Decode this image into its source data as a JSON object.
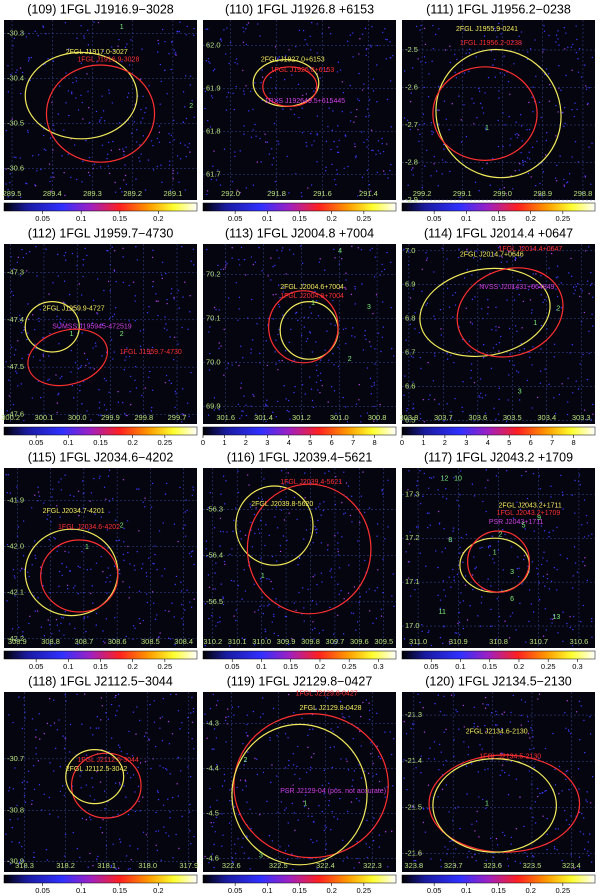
{
  "panels": [
    {
      "title": "(109) 1FGL J1916.9−3028",
      "xlim": [
        289.52,
        289.04
      ],
      "ylim": [
        -30.27,
        -30.67
      ],
      "xticks": [
        289.5,
        289.4,
        289.3,
        289.2,
        289.1
      ],
      "yticks": [
        -30.3,
        -30.4,
        -30.5,
        -30.6
      ],
      "cbar_lim": [
        0,
        0.25
      ],
      "cbar_ticks": [
        0.05,
        0.1,
        0.15,
        0.2
      ],
      "labels": [
        {
          "text": "2FGL J1917.0-3027",
          "color": "#f2ea5a"
        },
        {
          "text": "1FGL J1916.9-3028",
          "color": "#ff3030"
        },
        {
          "text": "1",
          "color": "#7cf07c"
        },
        {
          "text": "2",
          "color": "#7cf07c"
        }
      ]
    },
    {
      "title": "(110) 1FGL J1926.8 +6153",
      "xlim": [
        292.12,
        291.28
      ],
      "ylim": [
        62.06,
        61.64
      ],
      "xticks": [
        {
          "value": 292,
          "label": "292.0"
        },
        291.8,
        291.6,
        291.4
      ],
      "yticks": [
        {
          "value": 62,
          "label": "62.0"
        },
        61.9,
        61.8,
        61.7
      ],
      "cbar_lim": [
        0,
        0.3
      ],
      "cbar_ticks": [
        0.05,
        0.1,
        0.15,
        0.2,
        0.25
      ],
      "labels": [
        {
          "text": "2FGL J1927.0+6153",
          "color": "#f2ea5a"
        },
        {
          "text": "1FGL J1926.8+6153",
          "color": "#ff3030"
        },
        {
          "text": "1RXS J192649.5+615445",
          "color": "#d040e0"
        }
      ]
    },
    {
      "title": "(111) 1FGL J1956.2−0238",
      "xlim": [
        299.25,
        298.77
      ],
      "ylim": [
        -2.42,
        -2.9
      ],
      "xticks": [
        299.2,
        299.1,
        {
          "value": 299,
          "label": "299.0"
        },
        298.9,
        298.8
      ],
      "yticks": [
        -2.5,
        -2.6,
        -2.7,
        -2.8,
        -2.9
      ],
      "cbar_lim": [
        0,
        0.3
      ],
      "cbar_ticks": [
        0.05,
        0.1,
        0.15,
        0.2,
        0.25
      ],
      "labels": [
        {
          "text": "2FGL J1955.9-0241",
          "color": "#f2ea5a"
        },
        {
          "text": "1FGL J1956.2-0238",
          "color": "#ff3030"
        },
        {
          "text": "1",
          "color": "#7cf07c"
        }
      ]
    },
    {
      "title": "(112) 1FGL J1959.7−4730",
      "xlim": [
        300.22,
        299.64
      ],
      "ylim": [
        -47.24,
        -47.62
      ],
      "xticks": [
        300.2,
        300.1,
        {
          "value": 300,
          "label": "300.0"
        },
        299.9,
        299.8,
        299.7
      ],
      "yticks": [
        -47.3,
        -47.4,
        -47.5,
        -47.6
      ],
      "cbar_lim": [
        0,
        0.3
      ],
      "cbar_ticks": [
        0.05,
        0.1,
        0.15,
        0.2,
        0.25
      ],
      "labels": [
        {
          "text": "2FGL J1959.9-4727",
          "color": "#f2ea5a"
        },
        {
          "text": "SUMSS J195945-472519",
          "color": "#d040e0"
        },
        {
          "text": "1FGL J1959.7-4730",
          "color": "#ff3030"
        },
        {
          "text": "1",
          "color": "#7cf07c"
        },
        {
          "text": "2",
          "color": "#7cf07c"
        }
      ]
    },
    {
      "title": "(113) 1FGL J2004.8 +7004",
      "xlim": [
        301.72,
        300.7
      ],
      "ylim": [
        70.27,
        69.86
      ],
      "xticks": [
        301.6,
        301.4,
        301.2,
        {
          "value": 301,
          "label": "301.0"
        },
        300.8
      ],
      "yticks": [
        70.2,
        70.1,
        {
          "value": 70,
          "label": "70.0"
        },
        69.9
      ],
      "cbar_lim": [
        0,
        9
      ],
      "cbar_ticks": [
        0,
        1,
        2,
        3,
        4,
        5,
        6,
        7,
        8
      ],
      "labels": [
        {
          "text": "2FGL J2004.6+7004",
          "color": "#f2ea5a"
        },
        {
          "text": "1FGL J2004.8+7004",
          "color": "#ff3030"
        },
        {
          "text": "1",
          "color": "#7cf07c"
        },
        {
          "text": "2",
          "color": "#7cf07c"
        },
        {
          "text": "3",
          "color": "#7cf07c"
        },
        {
          "text": "4",
          "color": "#7cf07c"
        }
      ]
    },
    {
      "title": "(114) 1FGL J2014.4 +0647",
      "xlim": [
        303.82,
        303.26
      ],
      "ylim": [
        7.02,
        6.49
      ],
      "xticks": [
        303.8,
        303.7,
        303.6,
        303.5,
        303.4,
        303.3
      ],
      "yticks": [
        {
          "value": 7,
          "label": "7.0"
        },
        6.9,
        6.8,
        6.7,
        6.6,
        6.5
      ],
      "cbar_lim": [
        0,
        9
      ],
      "cbar_ticks": [
        0,
        1,
        2,
        3,
        4,
        5,
        6,
        7,
        8
      ],
      "labels": [
        {
          "text": "1FGL J2014.4+0647",
          "color": "#ff3030"
        },
        {
          "text": "2FGL J2014.7+0646",
          "color": "#f2ea5a"
        },
        {
          "text": "NVSS J201431+064849",
          "color": "#d040e0"
        },
        {
          "text": "1",
          "color": "#7cf07c"
        },
        {
          "text": "2",
          "color": "#7cf07c"
        },
        {
          "text": "3",
          "color": "#7cf07c"
        }
      ]
    },
    {
      "title": "(115) 1FGL J2034.6−4202",
      "xlim": [
        308.94,
        308.36
      ],
      "ylim": [
        -41.83,
        -42.22
      ],
      "xticks": [
        308.9,
        308.8,
        308.7,
        308.6,
        308.5,
        308.4
      ],
      "yticks": [
        -41.9,
        {
          "value": -42,
          "label": "-42.0"
        },
        -42.1,
        -42.2
      ],
      "cbar_lim": [
        0,
        0.3
      ],
      "cbar_ticks": [
        0.05,
        0.1,
        0.15,
        0.2,
        0.25
      ],
      "labels": [
        {
          "text": "2FGL J2034.7-4201",
          "color": "#f2ea5a"
        },
        {
          "text": "1FGL J2034.6-4202",
          "color": "#ff3030"
        },
        {
          "text": "1",
          "color": "#7cf07c"
        },
        {
          "text": "2",
          "color": "#7cf07c"
        }
      ]
    },
    {
      "title": "(116) 1FGL J2039.4−5621",
      "xlim": [
        310.24,
        309.45
      ],
      "ylim": [
        -56.21,
        -56.6
      ],
      "xticks": [
        310.2,
        310.1,
        {
          "value": 310,
          "label": "310.0"
        },
        309.9,
        309.8,
        309.7,
        309.6,
        309.5
      ],
      "yticks": [
        -56.3,
        -56.4,
        -56.5
      ],
      "cbar_lim": [
        0,
        0.33
      ],
      "cbar_ticks": [
        0.05,
        0.1,
        0.15,
        0.2,
        0.25,
        0.3
      ],
      "labels": [
        {
          "text": "1FGL J2039.4-5621",
          "color": "#ff3030"
        },
        {
          "text": "2FGL J2039.8-5620",
          "color": "#f2ea5a"
        },
        {
          "text": "1",
          "color": "#7cf07c"
        }
      ]
    },
    {
      "title": "(117) 1FGL J2043.2 +1709",
      "xlim": [
        311.04,
        310.56
      ],
      "ylim": [
        17.36,
        16.95
      ],
      "xticks": [
        {
          "value": 311,
          "label": "311.0"
        },
        310.9,
        310.8,
        310.7,
        310.6
      ],
      "yticks": [
        17.3,
        17.2,
        17.1,
        {
          "value": 17,
          "label": "17.0"
        }
      ],
      "cbar_lim": [
        0,
        0.33
      ],
      "cbar_ticks": [
        0.05,
        0.1,
        0.15,
        0.2,
        0.25,
        0.3
      ],
      "labels": [
        {
          "text": "2FGL J2043.2+1711",
          "color": "#f2ea5a"
        },
        {
          "text": "1FGL J2043.2+1709",
          "color": "#ff3030"
        },
        {
          "text": "PSR J2043+1711",
          "color": "#d040e0"
        },
        {
          "text": "12",
          "color": "#7cf07c"
        },
        {
          "text": "10",
          "color": "#7cf07c"
        },
        {
          "text": "8",
          "color": "#7cf07c"
        },
        {
          "text": "2",
          "color": "#7cf07c"
        },
        {
          "text": "1",
          "color": "#7cf07c"
        },
        {
          "text": "9",
          "color": "#7cf07c"
        },
        {
          "text": "5",
          "color": "#7cf07c"
        },
        {
          "text": "3",
          "color": "#7cf07c"
        },
        {
          "text": "6",
          "color": "#7cf07c"
        },
        {
          "text": "11",
          "color": "#7cf07c"
        },
        {
          "text": "13",
          "color": "#7cf07c"
        }
      ]
    },
    {
      "title": "(118) 1FGL J2112.5−3044",
      "xlim": [
        318.35,
        317.88
      ],
      "ylim": [
        -30.57,
        -30.92
      ],
      "xticks": [
        318.3,
        318.2,
        318.1,
        {
          "value": 318,
          "label": "318.0"
        },
        317.9
      ],
      "yticks": [
        -30.7,
        -30.8,
        -30.9
      ],
      "cbar_lim": [
        0,
        0.25
      ],
      "cbar_ticks": [
        0.05,
        0.1,
        0.15,
        0.2
      ],
      "labels": [
        {
          "text": "1FGL J2112.5-3044",
          "color": "#ff3030"
        },
        {
          "text": "2FGL J2112.5-3042",
          "color": "#f2ea5a"
        }
      ]
    },
    {
      "title": "(119) 1FGL J2129.8−0427",
      "xlim": [
        322.66,
        322.25
      ],
      "ylim": [
        -4.23,
        -4.63
      ],
      "xticks": [
        322.6,
        322.5,
        322.4,
        322.3
      ],
      "yticks": [
        -4.3,
        -4.4,
        -4.5,
        -4.6
      ],
      "cbar_lim": [
        0,
        0.3
      ],
      "cbar_ticks": [
        0.05,
        0.1,
        0.15,
        0.2,
        0.25
      ],
      "labels": [
        {
          "text": "1FGL J2129.8-0427",
          "color": "#ff3030"
        },
        {
          "text": "2FGL J2129.8-0428",
          "color": "#f2ea5a"
        },
        {
          "text": "PSR J2129-04 (pos. not accurate)",
          "color": "#d040e0"
        },
        {
          "text": "1",
          "color": "#7cf07c"
        },
        {
          "text": "2",
          "color": "#7cf07c"
        },
        {
          "text": "3",
          "color": "#7cf07c"
        }
      ]
    },
    {
      "title": "(120) 1FGL J2134.5−2130",
      "xlim": [
        323.83,
        323.34
      ],
      "ylim": [
        -21.25,
        -21.64
      ],
      "xticks": [
        323.8,
        323.7,
        323.6,
        323.5,
        323.4
      ],
      "yticks": [
        -21.3,
        -21.4,
        -21.5,
        -21.6
      ],
      "cbar_lim": [
        0,
        0.3
      ],
      "cbar_ticks": [
        0.05,
        0.1,
        0.15,
        0.2,
        0.25
      ],
      "labels": [
        {
          "text": "2FGL J2134.6-2130",
          "color": "#f2ea5a"
        },
        {
          "text": "1FGL J2134.5-2130",
          "color": "#ff3030"
        },
        {
          "text": "1",
          "color": "#7cf07c"
        }
      ]
    }
  ]
}
